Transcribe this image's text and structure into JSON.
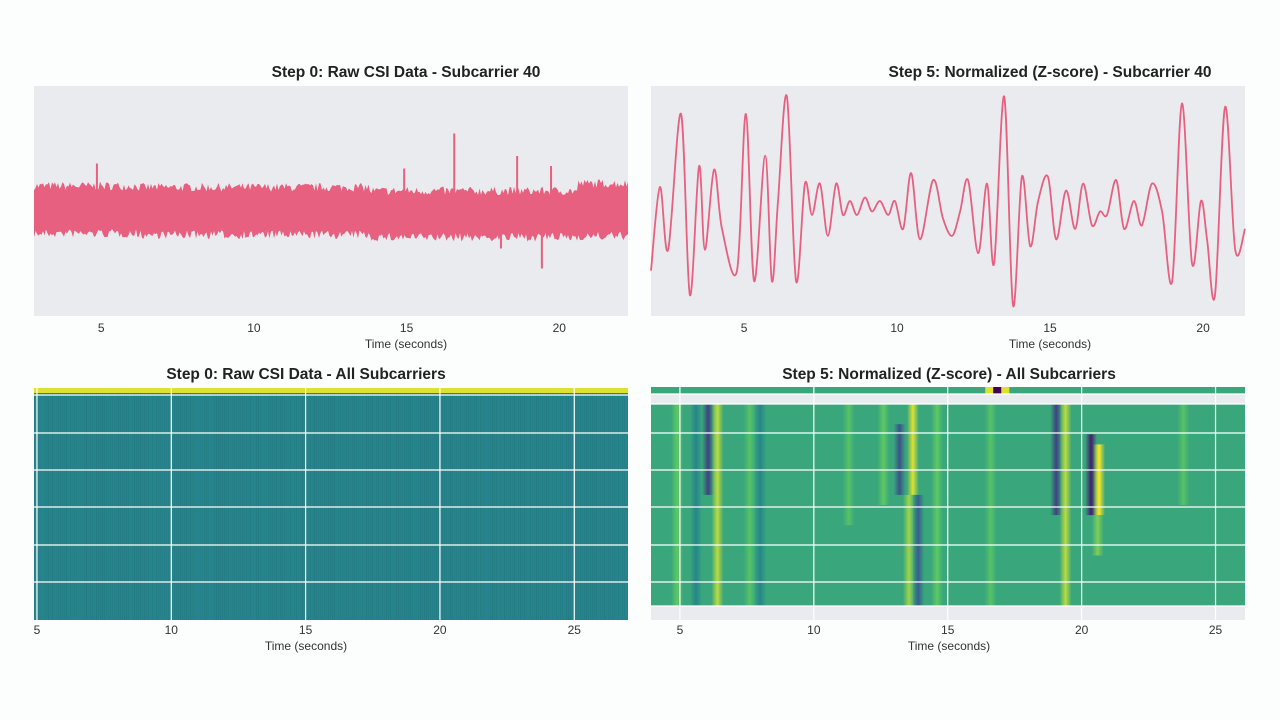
{
  "colors": {
    "background": "#fcfdfd",
    "plot_bg": "#e9ebef",
    "line": "#e8607f",
    "grid": "#ffffff",
    "viridis_dark": "#3b2f6e",
    "viridis_teal": "#23968b",
    "viridis_green": "#2fb47c",
    "viridis_yellow": "#fde725"
  },
  "chart_data": [
    {
      "type": "area",
      "title": "Step 0: Raw CSI Data - Subcarrier 40",
      "xlabel": "Time (seconds)",
      "ylabel": "",
      "xlim": [
        2.8,
        22.25
      ],
      "ylim": [
        -4.2,
        5.0
      ],
      "xticks": [
        5,
        10,
        15,
        20
      ],
      "grid": false,
      "envelope": [
        {
          "t0": 2.8,
          "t1": 6.2,
          "upper": 1.0,
          "lower": -0.9
        },
        {
          "t0": 6.2,
          "t1": 13.8,
          "upper": 0.95,
          "lower": -0.95
        },
        {
          "t0": 13.8,
          "t1": 20.6,
          "upper": 0.8,
          "lower": -1.05
        },
        {
          "t0": 20.6,
          "t1": 22.25,
          "upper": 1.1,
          "lower": -1.0
        }
      ],
      "spikes": [
        {
          "t": 4.86,
          "value": 1.9
        },
        {
          "t": 14.92,
          "value": 1.7
        },
        {
          "t": 16.56,
          "value": 3.1
        },
        {
          "t": 18.09,
          "value": -1.5
        },
        {
          "t": 18.62,
          "value": 2.2
        },
        {
          "t": 19.43,
          "value": -2.3
        },
        {
          "t": 19.73,
          "value": 1.8
        }
      ]
    },
    {
      "type": "line",
      "title": "Step 5: Normalized (Z-score) - Subcarrier 40",
      "xlabel": "Time (seconds)",
      "ylabel": "",
      "xlim": [
        1.96,
        21.37
      ],
      "ylim": [
        -3.3,
        3.3
      ],
      "xticks": [
        5,
        10,
        15,
        20
      ],
      "grid": false,
      "x": [
        1.96,
        2.25,
        2.52,
        2.94,
        3.23,
        3.53,
        3.72,
        4.02,
        4.28,
        4.77,
        5.06,
        5.33,
        5.69,
        5.91,
        6.11,
        6.4,
        6.7,
        6.99,
        7.22,
        7.48,
        7.74,
        8.01,
        8.23,
        8.46,
        8.69,
        8.95,
        9.18,
        9.44,
        9.71,
        9.93,
        10.2,
        10.46,
        10.75,
        11.18,
        11.5,
        11.8,
        12.06,
        12.32,
        12.65,
        12.94,
        13.17,
        13.5,
        13.79,
        14.08,
        14.35,
        14.61,
        14.93,
        15.2,
        15.52,
        15.82,
        16.08,
        16.37,
        16.63,
        16.86,
        17.16,
        17.42,
        17.74,
        18.0,
        18.33,
        18.66,
        18.99,
        19.31,
        19.64,
        19.93,
        20.13,
        20.39,
        20.72,
        21.05,
        21.37
      ],
      "y": [
        -2.0,
        0.4,
        -1.4,
        2.5,
        -2.7,
        1.0,
        -1.4,
        0.9,
        -0.8,
        -2.0,
        2.5,
        -2.3,
        1.3,
        -2.3,
        0.0,
        3.0,
        -2.3,
        0.5,
        -0.4,
        0.5,
        -1.0,
        0.5,
        -0.4,
        0.0,
        -0.4,
        0.1,
        -0.3,
        0.0,
        -0.4,
        0.0,
        -0.8,
        0.8,
        -1.1,
        0.6,
        -0.5,
        -1.0,
        -0.3,
        0.6,
        -1.5,
        0.5,
        -1.8,
        3.0,
        -3.0,
        0.7,
        -1.3,
        0.0,
        0.7,
        -1.1,
        0.3,
        -0.8,
        0.5,
        -0.7,
        -0.3,
        -0.4,
        0.6,
        -0.8,
        0.0,
        -0.7,
        0.5,
        -0.3,
        -2.3,
        2.8,
        -1.8,
        0.0,
        -1.1,
        -2.7,
        2.7,
        -1.4,
        -0.8
      ]
    },
    {
      "type": "heatmap",
      "title": "Step 0: Raw CSI Data - All Subcarriers",
      "xlabel": "Time (seconds)",
      "xlim": [
        4.89,
        27.0
      ],
      "xticks": [
        5,
        10,
        15,
        20,
        25
      ],
      "grid": true,
      "base_value": 0.45,
      "top_row_value": 0.95,
      "stripes": []
    },
    {
      "type": "heatmap",
      "title": "Step 5: Normalized (Z-score) - All Subcarriers",
      "xlabel": "Time (seconds)",
      "xlim": [
        3.92,
        26.1
      ],
      "xticks": [
        5,
        10,
        15,
        20,
        25
      ],
      "grid": true,
      "base_value": 0.6,
      "top_row_events": [
        {
          "t": 16.55,
          "value": 0.95
        },
        {
          "t": 16.85,
          "value": 0.0
        },
        {
          "t": 17.15,
          "value": 0.95
        }
      ],
      "stripes": [
        {
          "t": 4.9,
          "value": 0.75,
          "rows": [
            0,
            1
          ]
        },
        {
          "t": 5.6,
          "value": 0.45,
          "rows": [
            0,
            1
          ]
        },
        {
          "t": 6.05,
          "value": 0.2,
          "rows": [
            0,
            0.45
          ]
        },
        {
          "t": 6.4,
          "value": 0.9,
          "rows": [
            0,
            1
          ]
        },
        {
          "t": 7.6,
          "value": 0.72,
          "rows": [
            0,
            1
          ]
        },
        {
          "t": 8.0,
          "value": 0.45,
          "rows": [
            0,
            1
          ]
        },
        {
          "t": 11.3,
          "value": 0.72,
          "rows": [
            0,
            0.6
          ]
        },
        {
          "t": 12.6,
          "value": 0.75,
          "rows": [
            0,
            0.5
          ]
        },
        {
          "t": 13.2,
          "value": 0.25,
          "rows": [
            0.1,
            0.45
          ]
        },
        {
          "t": 13.55,
          "value": 0.85,
          "rows": [
            0.45,
            1
          ]
        },
        {
          "t": 13.7,
          "value": 0.95,
          "rows": [
            0,
            0.45
          ]
        },
        {
          "t": 13.9,
          "value": 0.3,
          "rows": [
            0.45,
            1
          ]
        },
        {
          "t": 14.6,
          "value": 0.75,
          "rows": [
            0,
            1
          ]
        },
        {
          "t": 16.6,
          "value": 0.72,
          "rows": [
            0,
            1
          ]
        },
        {
          "t": 19.05,
          "value": 0.2,
          "rows": [
            0,
            0.55
          ]
        },
        {
          "t": 19.4,
          "value": 0.9,
          "rows": [
            0,
            1
          ]
        },
        {
          "t": 20.35,
          "value": 0.1,
          "rows": [
            0.15,
            0.55
          ]
        },
        {
          "t": 20.65,
          "value": 1.0,
          "rows": [
            0.2,
            0.55
          ]
        },
        {
          "t": 20.6,
          "value": 0.8,
          "rows": [
            0.55,
            0.75
          ]
        },
        {
          "t": 23.8,
          "value": 0.72,
          "rows": [
            0,
            0.5
          ]
        }
      ]
    }
  ]
}
